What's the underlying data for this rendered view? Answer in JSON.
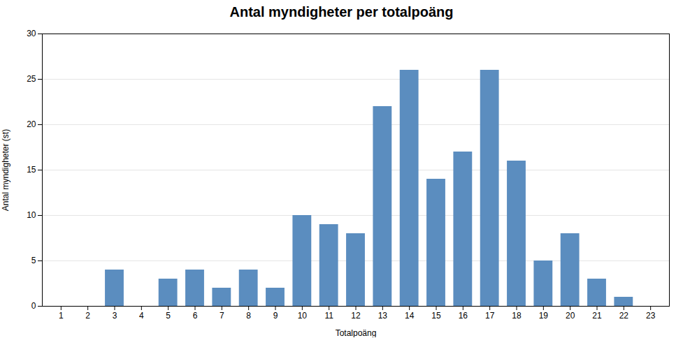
{
  "chart_data": {
    "type": "bar",
    "title": "Antal myndigheter per totalpoäng",
    "xlabel": "Totalpoäng",
    "ylabel": "Antal myndigheter (st)",
    "x": [
      1,
      2,
      3,
      4,
      5,
      6,
      7,
      8,
      9,
      10,
      11,
      12,
      13,
      14,
      15,
      16,
      17,
      18,
      19,
      20,
      21,
      22,
      23
    ],
    "values": [
      0,
      0,
      4,
      0,
      3,
      4,
      2,
      4,
      2,
      10,
      9,
      8,
      22,
      26,
      14,
      17,
      26,
      16,
      5,
      8,
      3,
      1,
      0
    ],
    "color": "#5b8dbf",
    "xlim": [
      0.3,
      23.7
    ],
    "xticks": [
      1,
      2,
      3,
      4,
      5,
      6,
      7,
      8,
      9,
      10,
      11,
      12,
      13,
      14,
      15,
      16,
      17,
      18,
      19,
      20,
      21,
      22,
      23
    ],
    "ylim": [
      0,
      30
    ],
    "yticks": [
      0,
      5,
      10,
      15,
      20,
      25,
      30
    ],
    "grid": true
  }
}
